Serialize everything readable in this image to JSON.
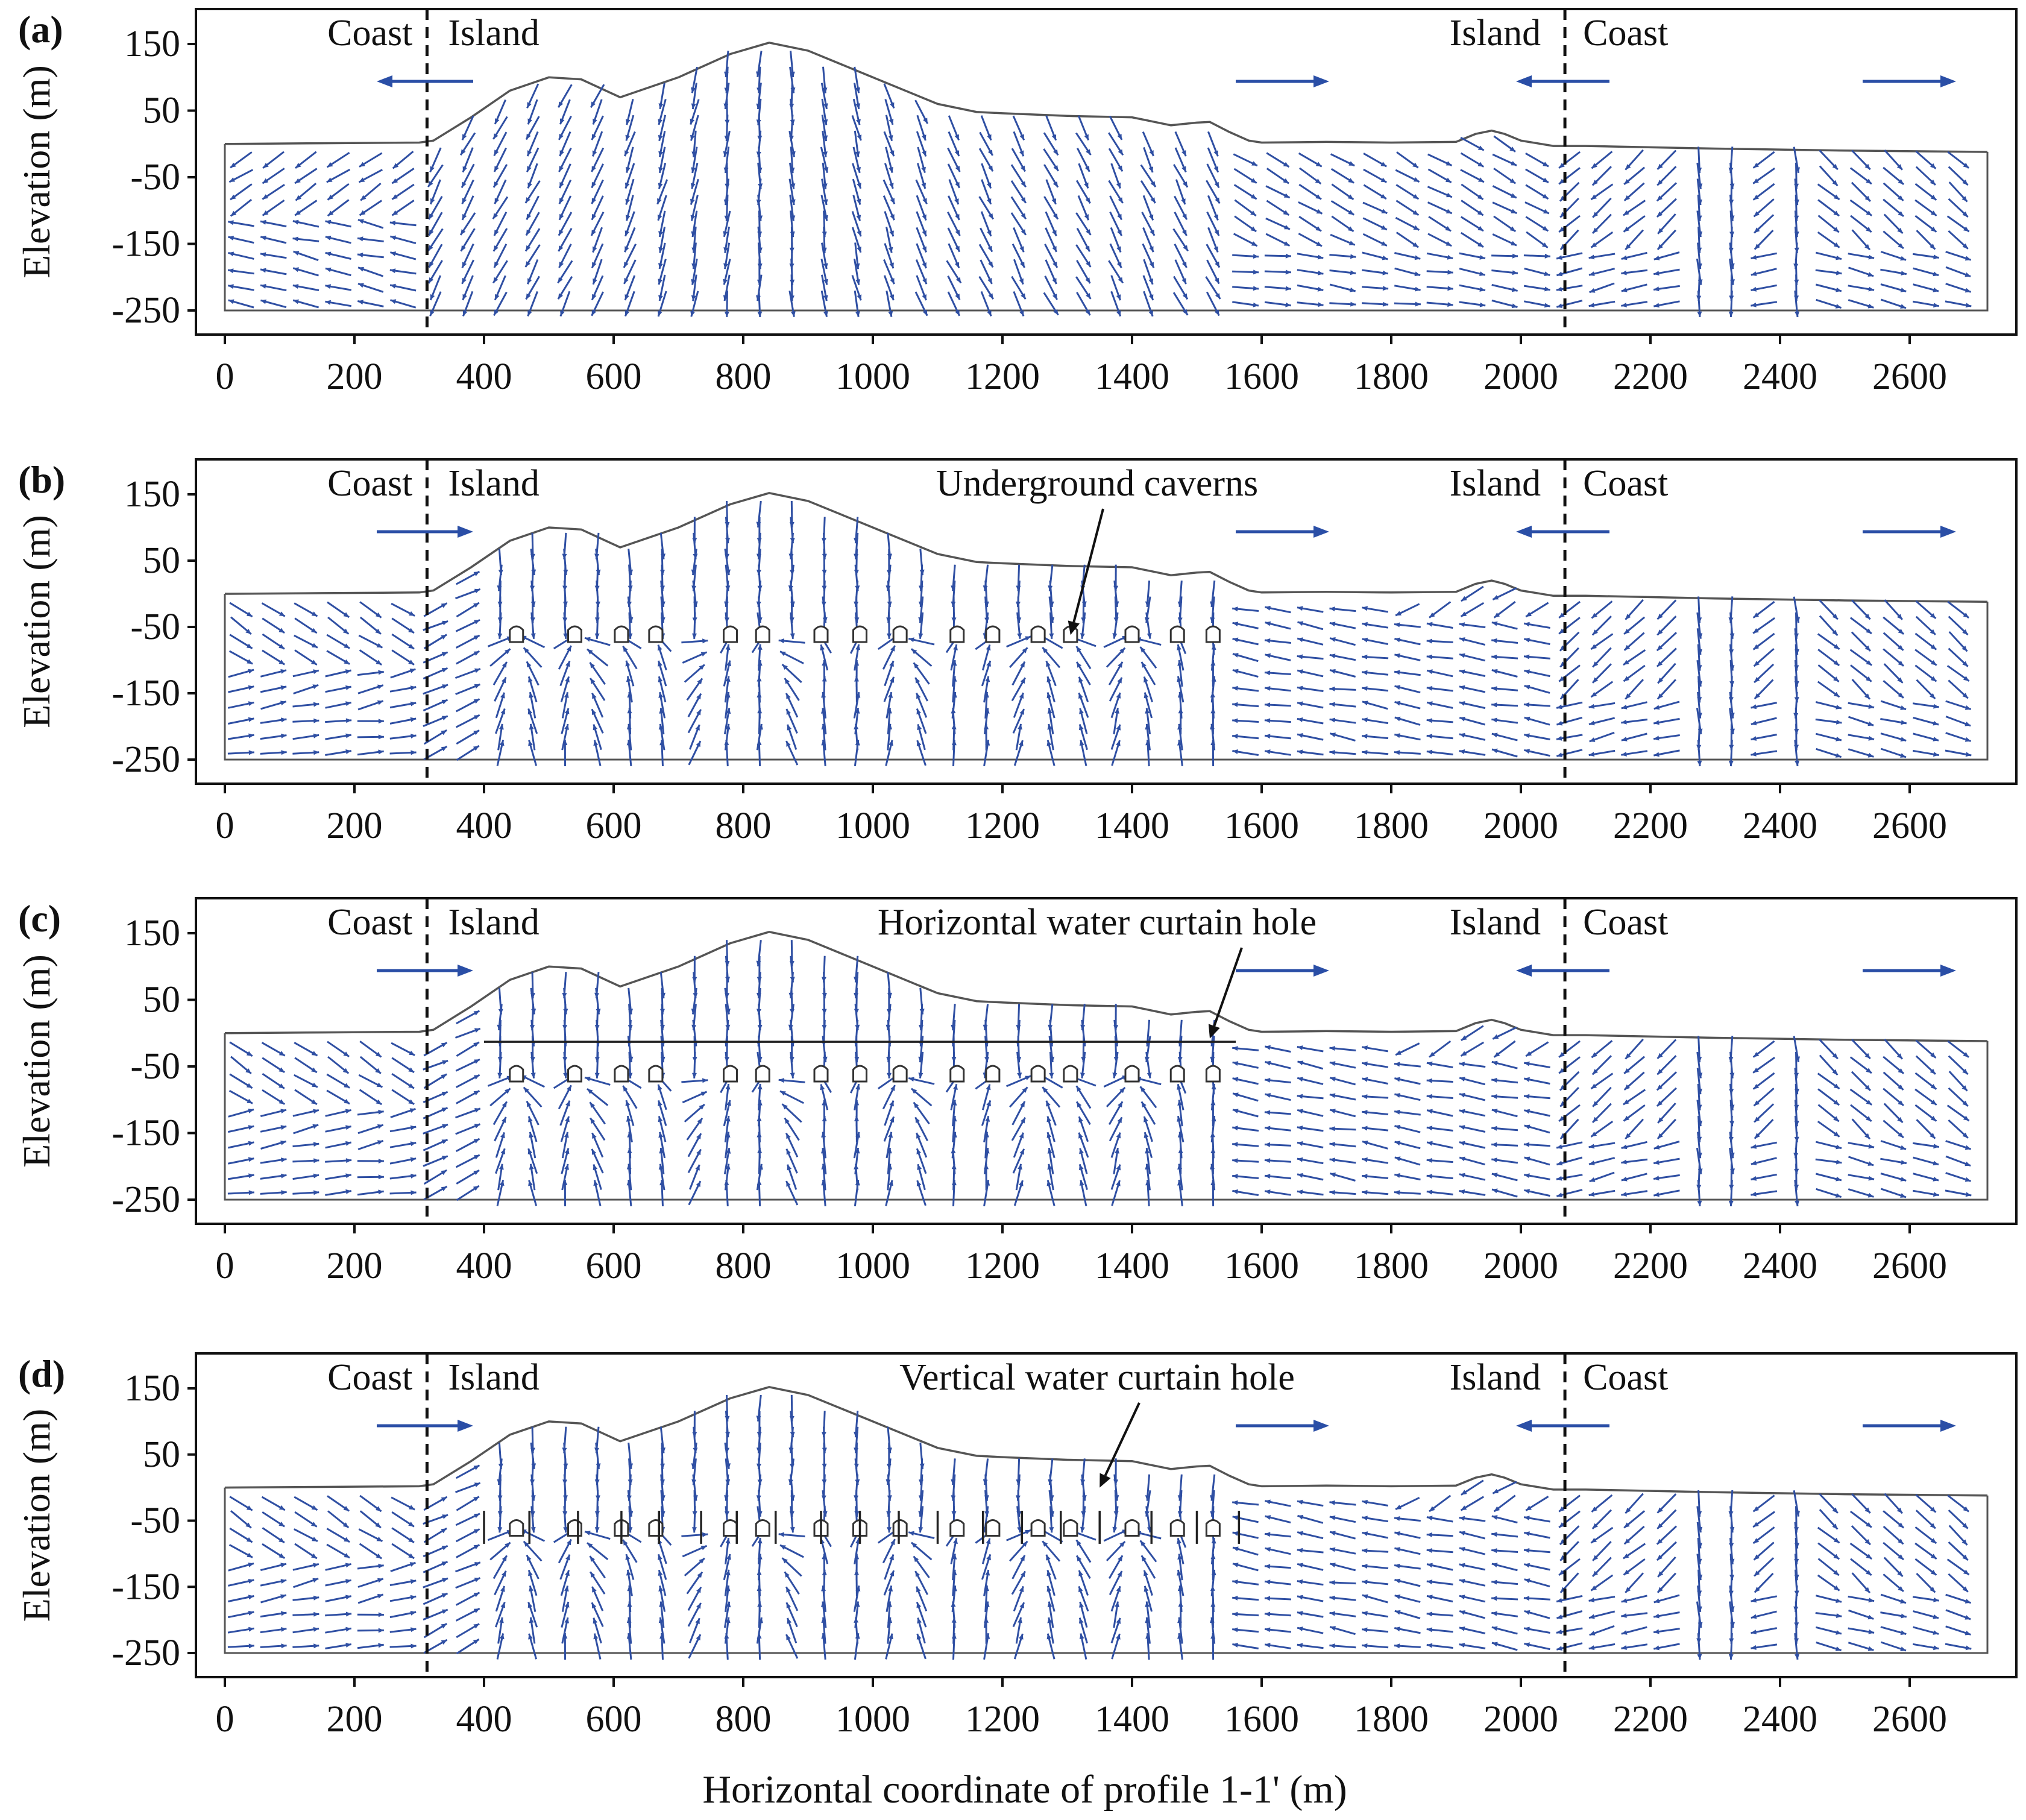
{
  "chart_data": [
    {
      "type": "vector-field",
      "panel_label": "(a)",
      "scenario": "natural",
      "ylabel": "Elevation (m)",
      "xlabel": "",
      "xlim": [
        0,
        2700
      ],
      "ylim": [
        -270,
        190
      ],
      "xticks": [
        0,
        200,
        400,
        600,
        800,
        1000,
        1200,
        1400,
        1600,
        1800,
        2000,
        2200,
        2400,
        2600
      ],
      "yticks": [
        150,
        50,
        -50,
        -150,
        -250
      ],
      "region_labels": {
        "left_coast": "Coast",
        "left_island": "Island",
        "right_island": "Island",
        "right_coast": "Coast"
      },
      "boundaries": [
        312,
        2068
      ],
      "flow_arrows": [
        "left",
        "right",
        "left",
        "right"
      ],
      "annotation": "",
      "caverns": false,
      "curtain": "none"
    },
    {
      "type": "vector-field",
      "panel_label": "(b)",
      "scenario": "caverns",
      "ylabel": "Elevation (m)",
      "xlabel": "",
      "xlim": [
        0,
        2700
      ],
      "ylim": [
        -270,
        190
      ],
      "xticks": [
        0,
        200,
        400,
        600,
        800,
        1000,
        1200,
        1400,
        1600,
        1800,
        2000,
        2200,
        2400,
        2600
      ],
      "yticks": [
        150,
        50,
        -50,
        -150,
        -250
      ],
      "region_labels": {
        "left_coast": "Coast",
        "left_island": "Island",
        "right_island": "Island",
        "right_coast": "Coast"
      },
      "boundaries": [
        312,
        2068
      ],
      "flow_arrows": [
        "right",
        "right",
        "left",
        "right"
      ],
      "annotation": "Underground caverns",
      "annotation_target": [
        1305,
        -62
      ],
      "caverns": true,
      "curtain": "none"
    },
    {
      "type": "vector-field",
      "panel_label": "(c)",
      "scenario": "horizontal-curtain",
      "ylabel": "Elevation (m)",
      "xlabel": "",
      "xlim": [
        0,
        2700
      ],
      "ylim": [
        -270,
        190
      ],
      "xticks": [
        0,
        200,
        400,
        600,
        800,
        1000,
        1200,
        1400,
        1600,
        1800,
        2000,
        2200,
        2400,
        2600
      ],
      "yticks": [
        150,
        50,
        -50,
        -150,
        -250
      ],
      "region_labels": {
        "left_coast": "Coast",
        "left_island": "Island",
        "right_island": "Island",
        "right_coast": "Coast"
      },
      "boundaries": [
        312,
        2068
      ],
      "flow_arrows": [
        "right",
        "right",
        "left",
        "right"
      ],
      "annotation": "Horizontal water curtain hole",
      "annotation_target": [
        1520,
        -8
      ],
      "caverns": true,
      "curtain": "horizontal",
      "curtain_elevation": -13,
      "curtain_range": [
        400,
        1560
      ]
    },
    {
      "type": "vector-field",
      "panel_label": "(d)",
      "scenario": "vertical-curtain",
      "ylabel": "Elevation (m)",
      "xlabel": "Horizontal coordinate of profile 1-1' (m)",
      "xlim": [
        0,
        2700
      ],
      "ylim": [
        -270,
        190
      ],
      "xticks": [
        0,
        200,
        400,
        600,
        800,
        1000,
        1200,
        1400,
        1600,
        1800,
        2000,
        2200,
        2400,
        2600
      ],
      "yticks": [
        150,
        50,
        -50,
        -150,
        -250
      ],
      "region_labels": {
        "left_coast": "Coast",
        "left_island": "Island",
        "right_island": "Island",
        "right_coast": "Coast"
      },
      "boundaries": [
        312,
        2068
      ],
      "flow_arrows": [
        "right",
        "right",
        "left",
        "right"
      ],
      "annotation": "Vertical water curtain hole",
      "annotation_target": [
        1350,
        0
      ],
      "caverns": true,
      "curtain": "vertical",
      "curtain_top": -35,
      "curtain_bottom": -85
    }
  ],
  "terrain_profile": {
    "x": [
      0,
      150,
      300,
      322,
      380,
      440,
      500,
      550,
      610,
      700,
      780,
      840,
      900,
      1000,
      1100,
      1160,
      1200,
      1300,
      1400,
      1460,
      1500,
      1520,
      1550,
      1580,
      1600,
      1700,
      1800,
      1900,
      1930,
      1955,
      1975,
      2000,
      2050,
      2100,
      2300,
      2500,
      2720
    ],
    "y": [
      0,
      1,
      2,
      5,
      40,
      80,
      100,
      97,
      70,
      100,
      135,
      152,
      140,
      100,
      60,
      48,
      46,
      42,
      40,
      28,
      32,
      33,
      18,
      5,
      2,
      3,
      2,
      3,
      15,
      20,
      15,
      5,
      -3,
      -3,
      -7,
      -10,
      -12
    ]
  },
  "domain": {
    "x_left": 0,
    "x_right": 2720,
    "bottom": -250,
    "top_left": 0
  },
  "cavern_positions": [
    450,
    540,
    612,
    665,
    780,
    830,
    920,
    980,
    1042,
    1130,
    1185,
    1255,
    1305,
    1400,
    1470,
    1525
  ],
  "cavern_elevation": -60,
  "vertical_hole_positions": [
    400,
    470,
    545,
    612,
    670,
    735,
    790,
    850,
    920,
    980,
    1040,
    1100,
    1170,
    1230,
    1290,
    1350,
    1430,
    1500,
    1565
  ],
  "vector_style": {
    "color": "#2f4fa3"
  }
}
